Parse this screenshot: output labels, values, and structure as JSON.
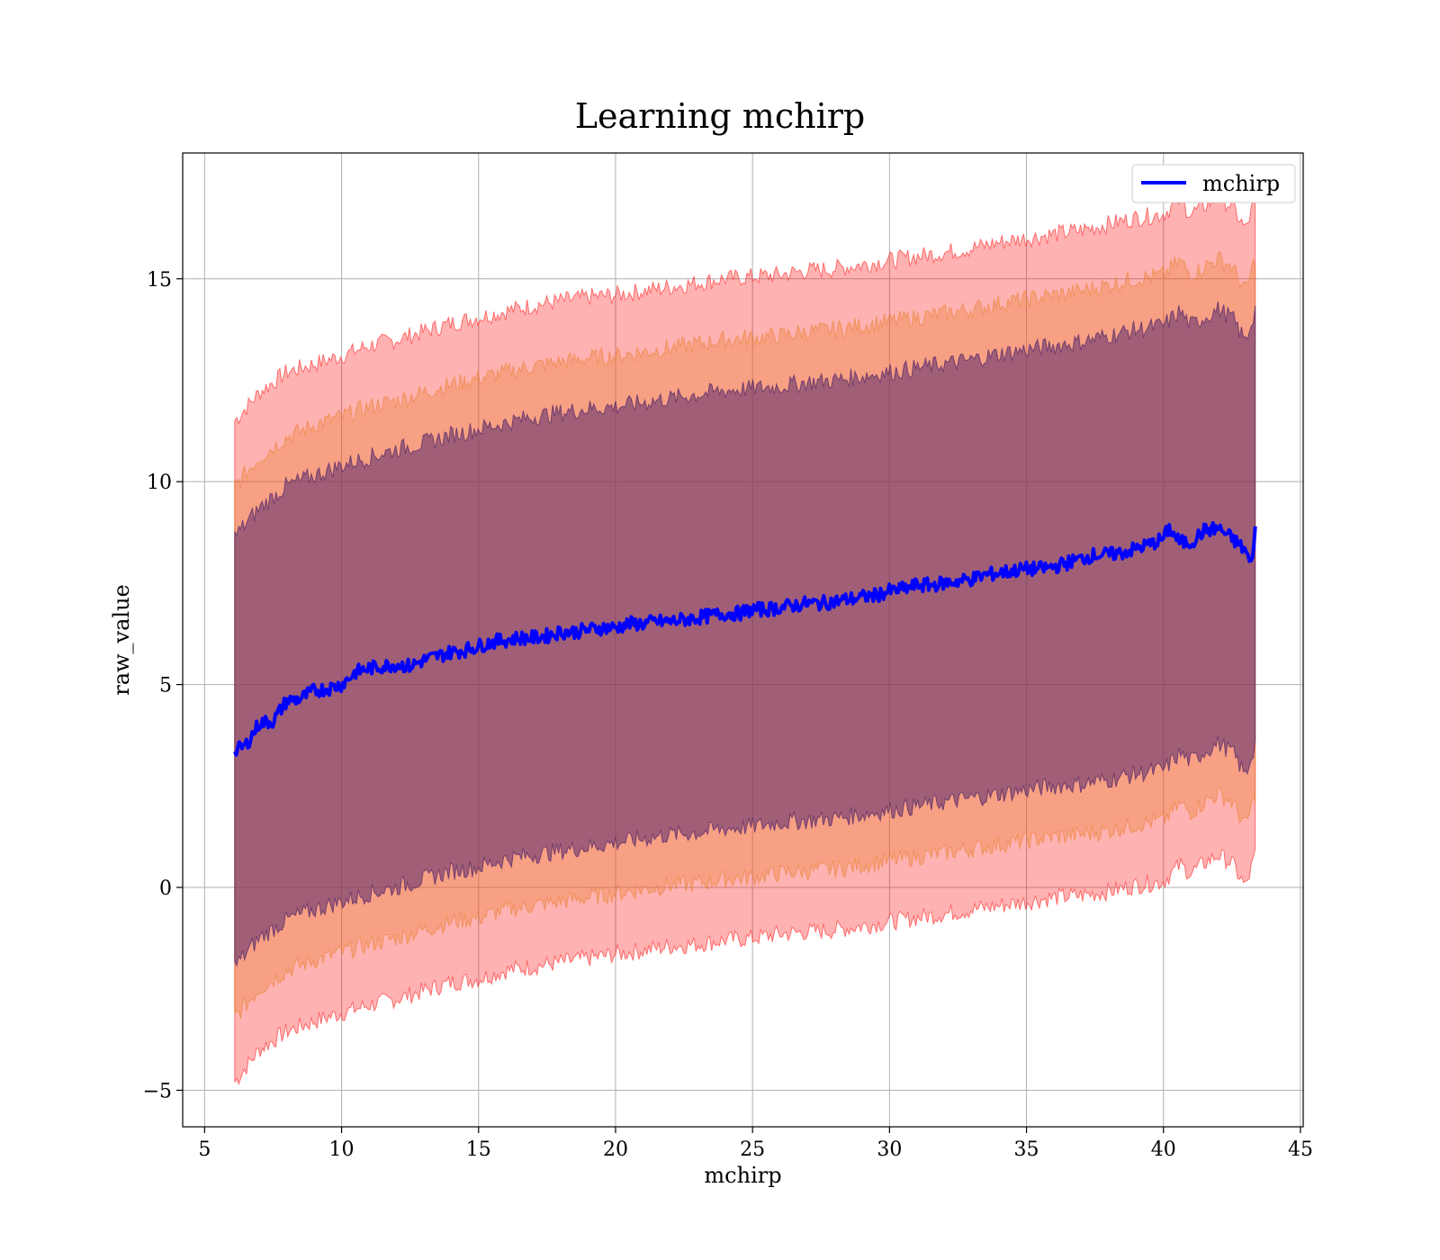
{
  "chart_data": {
    "type": "line",
    "title": "Learning mchirp",
    "xlabel": "mchirp",
    "ylabel": "raw_value",
    "xlim": [
      4.2,
      45.1
    ],
    "ylim": [
      -5.9,
      18.1
    ],
    "x_ticks": [
      5,
      10,
      15,
      20,
      25,
      30,
      35,
      40,
      45
    ],
    "y_ticks": [
      -5,
      0,
      5,
      10,
      15
    ],
    "y_tick_labels": [
      "−5",
      "0",
      "5",
      "10",
      "15"
    ],
    "grid": true,
    "legend": {
      "position": "top-right",
      "entries": [
        "mchirp"
      ]
    },
    "series": [
      {
        "name": "mchirp",
        "color": "#0000ff",
        "x": [
          6.1,
          6.5,
          7.0,
          7.5,
          8.0,
          8.5,
          9.0,
          9.5,
          10.0,
          10.5,
          11.0,
          11.5,
          12.0,
          12.5,
          13.0,
          13.5,
          14.0,
          14.5,
          15.0,
          15.5,
          16.0,
          16.5,
          17.0,
          17.5,
          18.0,
          18.5,
          19.0,
          19.5,
          20.0,
          20.5,
          21.0,
          21.5,
          22.0,
          22.5,
          23.0,
          23.5,
          24.0,
          24.5,
          25.0,
          25.5,
          26.0,
          26.5,
          27.0,
          27.5,
          28.0,
          28.5,
          29.0,
          29.5,
          30.0,
          30.5,
          31.0,
          31.5,
          32.0,
          32.5,
          33.0,
          33.5,
          34.0,
          34.5,
          35.0,
          35.5,
          36.0,
          36.5,
          37.0,
          37.5,
          38.0,
          38.5,
          39.0,
          39.5,
          40.0,
          40.2,
          40.6,
          41.0,
          41.5,
          42.0,
          42.5,
          43.0,
          43.2,
          43.35
        ],
        "values": [
          3.35,
          3.5,
          4.05,
          4.1,
          4.6,
          4.65,
          4.85,
          4.9,
          5.0,
          5.3,
          5.4,
          5.45,
          5.5,
          5.45,
          5.6,
          5.7,
          5.8,
          5.85,
          5.95,
          6.05,
          6.1,
          6.15,
          6.15,
          6.2,
          6.3,
          6.3,
          6.35,
          6.4,
          6.4,
          6.5,
          6.5,
          6.55,
          6.55,
          6.6,
          6.65,
          6.7,
          6.75,
          6.75,
          6.85,
          6.85,
          6.9,
          6.95,
          7.0,
          7.0,
          7.05,
          7.1,
          7.15,
          7.2,
          7.3,
          7.35,
          7.45,
          7.45,
          7.5,
          7.55,
          7.6,
          7.7,
          7.75,
          7.8,
          7.85,
          7.85,
          7.9,
          8.0,
          8.1,
          8.2,
          8.2,
          8.25,
          8.35,
          8.45,
          8.6,
          8.85,
          8.5,
          8.5,
          8.8,
          8.85,
          8.6,
          8.3,
          7.9,
          8.9
        ]
      }
    ],
    "bands": [
      {
        "level": "outer",
        "color": "#ff0000",
        "opacity": 0.3,
        "x": [
          6.1,
          7.0,
          8.0,
          9.0,
          10.0,
          11.0,
          12.0,
          13.0,
          14.0,
          15.0,
          16.0,
          17.0,
          18.0,
          19.0,
          20.0,
          21.0,
          22.0,
          23.0,
          24.0,
          25.0,
          26.0,
          27.0,
          28.0,
          29.0,
          30.0,
          31.0,
          32.0,
          33.0,
          34.0,
          35.0,
          36.0,
          37.0,
          38.0,
          39.0,
          40.0,
          40.6,
          41.0,
          41.5,
          42.0,
          42.5,
          43.0,
          43.35
        ],
        "upper": [
          11.5,
          12.2,
          12.7,
          12.9,
          13.1,
          13.35,
          13.5,
          13.7,
          13.9,
          14.05,
          14.2,
          14.35,
          14.45,
          14.55,
          14.6,
          14.7,
          14.8,
          14.9,
          15.0,
          15.05,
          15.1,
          15.2,
          15.25,
          15.35,
          15.45,
          15.55,
          15.65,
          15.75,
          15.9,
          16.0,
          16.1,
          16.2,
          16.35,
          16.5,
          16.6,
          16.95,
          16.6,
          16.8,
          17.0,
          16.8,
          16.2,
          17.0
        ],
        "lower": [
          -4.8,
          -4.0,
          -3.55,
          -3.3,
          -3.1,
          -2.9,
          -2.75,
          -2.55,
          -2.35,
          -2.25,
          -2.05,
          -1.95,
          -1.85,
          -1.75,
          -1.65,
          -1.55,
          -1.45,
          -1.4,
          -1.3,
          -1.25,
          -1.15,
          -1.1,
          -1.05,
          -0.95,
          -0.85,
          -0.75,
          -0.65,
          -0.55,
          -0.45,
          -0.35,
          -0.25,
          -0.2,
          -0.1,
          0.05,
          0.15,
          0.55,
          0.35,
          0.6,
          0.8,
          0.6,
          0.0,
          0.8
        ]
      },
      {
        "level": "middle",
        "color": "#e87f2b",
        "opacity": 0.35,
        "x": [
          6.1,
          7.0,
          8.0,
          9.0,
          10.0,
          11.0,
          12.0,
          13.0,
          14.0,
          15.0,
          16.0,
          17.0,
          18.0,
          19.0,
          20.0,
          21.0,
          22.0,
          23.0,
          24.0,
          25.0,
          26.0,
          27.0,
          28.0,
          29.0,
          30.0,
          31.0,
          32.0,
          33.0,
          34.0,
          35.0,
          36.0,
          37.0,
          38.0,
          39.0,
          40.0,
          40.6,
          41.0,
          41.5,
          42.0,
          42.5,
          43.0,
          43.35
        ],
        "upper": [
          9.9,
          10.6,
          11.1,
          11.4,
          11.6,
          11.85,
          12.0,
          12.2,
          12.4,
          12.55,
          12.7,
          12.85,
          12.95,
          13.05,
          13.1,
          13.2,
          13.3,
          13.4,
          13.5,
          13.55,
          13.6,
          13.7,
          13.75,
          13.85,
          13.95,
          14.05,
          14.15,
          14.25,
          14.4,
          14.5,
          14.6,
          14.7,
          14.85,
          15.0,
          15.1,
          15.45,
          15.1,
          15.3,
          15.5,
          15.3,
          14.7,
          15.5
        ],
        "lower": [
          -3.2,
          -2.5,
          -2.05,
          -1.8,
          -1.6,
          -1.4,
          -1.25,
          -1.05,
          -0.85,
          -0.75,
          -0.55,
          -0.45,
          -0.35,
          -0.25,
          -0.15,
          -0.05,
          0.05,
          0.1,
          0.2,
          0.25,
          0.35,
          0.4,
          0.45,
          0.55,
          0.65,
          0.75,
          0.85,
          0.95,
          1.05,
          1.15,
          1.25,
          1.3,
          1.4,
          1.55,
          1.65,
          2.05,
          1.85,
          2.1,
          2.3,
          2.1,
          1.5,
          2.3
        ]
      },
      {
        "level": "inner",
        "color": "#5a2a6b",
        "opacity": 0.55,
        "x": [
          6.1,
          7.0,
          8.0,
          9.0,
          10.0,
          11.0,
          12.0,
          13.0,
          14.0,
          15.0,
          16.0,
          17.0,
          18.0,
          19.0,
          20.0,
          21.0,
          22.0,
          23.0,
          24.0,
          25.0,
          26.0,
          27.0,
          28.0,
          29.0,
          30.0,
          31.0,
          32.0,
          33.0,
          34.0,
          35.0,
          36.0,
          37.0,
          38.0,
          39.0,
          40.0,
          40.6,
          41.0,
          41.5,
          42.0,
          42.5,
          43.0,
          43.35
        ],
        "upper": [
          8.65,
          9.35,
          9.9,
          10.15,
          10.4,
          10.6,
          10.8,
          10.95,
          11.15,
          11.3,
          11.45,
          11.6,
          11.7,
          11.8,
          11.85,
          11.95,
          12.05,
          12.15,
          12.25,
          12.3,
          12.35,
          12.45,
          12.5,
          12.6,
          12.7,
          12.8,
          12.9,
          13.0,
          13.15,
          13.25,
          13.35,
          13.45,
          13.6,
          13.75,
          13.85,
          14.2,
          13.85,
          14.05,
          14.25,
          14.05,
          13.45,
          14.25
        ],
        "lower": [
          -1.95,
          -1.25,
          -0.8,
          -0.55,
          -0.35,
          -0.15,
          0.0,
          0.2,
          0.4,
          0.5,
          0.7,
          0.8,
          0.9,
          1.0,
          1.1,
          1.2,
          1.3,
          1.35,
          1.45,
          1.5,
          1.6,
          1.65,
          1.7,
          1.8,
          1.9,
          2.0,
          2.1,
          2.2,
          2.3,
          2.4,
          2.5,
          2.55,
          2.65,
          2.8,
          2.9,
          3.3,
          3.1,
          3.35,
          3.55,
          3.35,
          2.75,
          3.55
        ]
      }
    ]
  }
}
